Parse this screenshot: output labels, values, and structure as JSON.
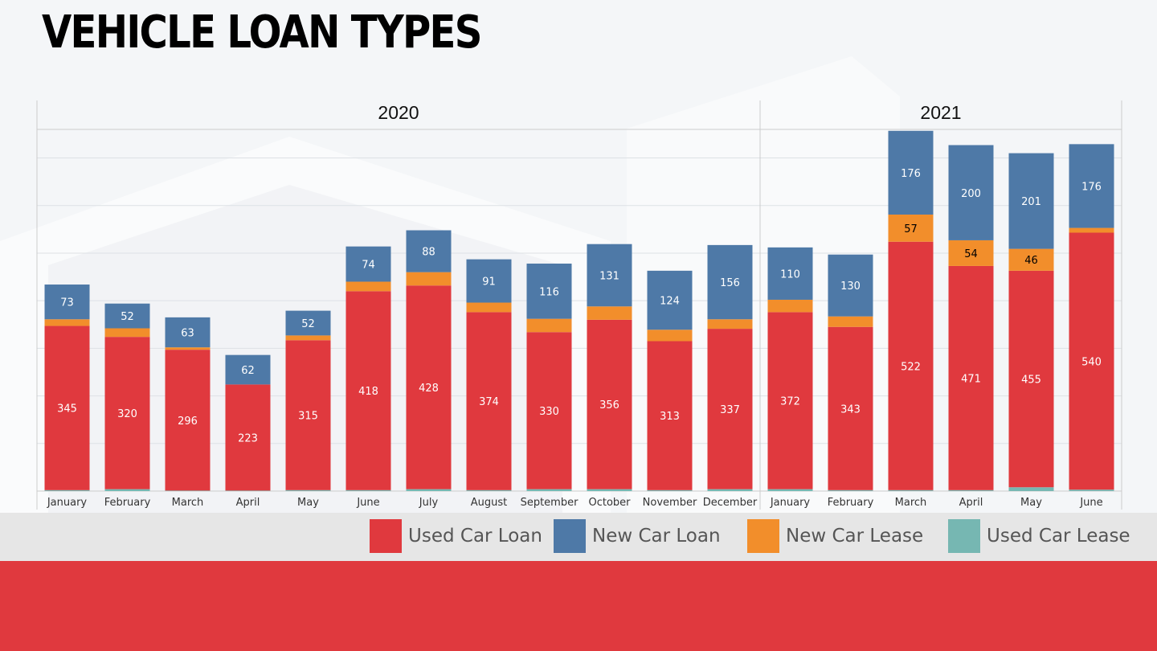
{
  "slide": {
    "title": "VEHICLE LOAN TYPES"
  },
  "chart_data": {
    "type": "bar",
    "stacked": true,
    "title": "",
    "xlabel": "",
    "ylabel": "",
    "ylim": [
      0,
      760
    ],
    "grid": true,
    "legend_position": "bottom",
    "groups": [
      {
        "label": "2020",
        "categories": [
          "January",
          "February",
          "March",
          "April",
          "May",
          "June",
          "July",
          "August",
          "September",
          "October",
          "November",
          "December"
        ]
      },
      {
        "label": "2021",
        "categories": [
          "January",
          "February",
          "March",
          "April",
          "May",
          "June"
        ]
      }
    ],
    "categories": [
      "January",
      "February",
      "March",
      "April",
      "May",
      "June",
      "July",
      "August",
      "September",
      "October",
      "November",
      "December",
      "January",
      "February",
      "March",
      "April",
      "May",
      "June"
    ],
    "series": [
      {
        "name": "Used Car Loan",
        "color": "#e0393e",
        "text_color": "#ffffff",
        "values": [
          345,
          320,
          296,
          223,
          315,
          418,
          428,
          374,
          330,
          356,
          313,
          337,
          372,
          343,
          522,
          471,
          455,
          540
        ],
        "labels": [
          "345",
          "320",
          "296",
          "223",
          "315",
          "418",
          "428",
          "374",
          "330",
          "356",
          "313",
          "337",
          "372",
          "343",
          "522",
          "471",
          "455",
          "540"
        ]
      },
      {
        "name": "New Car Loan",
        "color": "#4e79a7",
        "text_color": "#ffffff",
        "values": [
          73,
          52,
          63,
          62,
          52,
          74,
          88,
          91,
          116,
          131,
          124,
          156,
          110,
          130,
          176,
          200,
          201,
          176
        ],
        "labels": [
          "73",
          "52",
          "63",
          "62",
          "52",
          "74",
          "88",
          "91",
          "116",
          "131",
          "124",
          "156",
          "110",
          "130",
          "176",
          "200",
          "201",
          "176"
        ]
      },
      {
        "name": "New Car Lease",
        "color": "#f28e2b",
        "text_color": "#000000",
        "values": [
          14,
          18,
          5,
          0,
          10,
          20,
          28,
          20,
          28,
          28,
          24,
          20,
          26,
          22,
          57,
          54,
          46,
          10
        ],
        "labels": [
          "",
          "",
          "",
          "",
          "",
          "",
          "",
          "",
          "",
          "",
          "",
          "",
          "",
          "",
          "57",
          "54",
          "46",
          ""
        ]
      },
      {
        "name": "Used Car Lease",
        "color": "#76b7b2",
        "text_color": "#000000",
        "values": [
          2,
          4,
          1,
          1,
          2,
          2,
          4,
          2,
          4,
          4,
          2,
          4,
          4,
          2,
          2,
          2,
          8,
          3
        ],
        "labels": [
          "",
          "",
          "",
          "",
          "",
          "",
          "",
          "",
          "",
          "",
          "",
          "",
          "",
          "",
          "",
          "",
          "",
          ""
        ]
      }
    ]
  }
}
